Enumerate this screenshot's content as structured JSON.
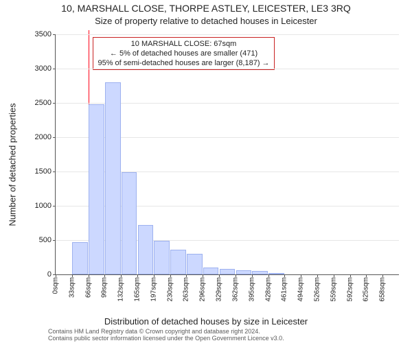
{
  "title": "10, MARSHALL CLOSE, THORPE ASTLEY, LEICESTER, LE3 3RQ",
  "subtitle": "Size of property relative to detached houses in Leicester",
  "y_axis_label": "Number of detached properties",
  "x_axis_label": "Distribution of detached houses by size in Leicester",
  "footer_line1": "Contains HM Land Registry data © Crown copyright and database right 2024.",
  "footer_line2": "Contains public sector information licensed under the Open Government Licence v3.0.",
  "y": {
    "min": 0,
    "max": 3500,
    "ticks": [
      0,
      500,
      1000,
      1500,
      2000,
      2500,
      3000,
      3500
    ]
  },
  "x_tick_labels": [
    "0sqm",
    "33sqm",
    "66sqm",
    "99sqm",
    "132sqm",
    "165sqm",
    "197sqm",
    "230sqm",
    "263sqm",
    "296sqm",
    "329sqm",
    "362sqm",
    "395sqm",
    "428sqm",
    "461sqm",
    "494sqm",
    "526sqm",
    "559sqm",
    "592sqm",
    "625sqm",
    "658sqm"
  ],
  "bars": {
    "fill": "#ccd8ff",
    "border": "#9db1ef",
    "values": [
      0,
      470,
      2480,
      2800,
      1490,
      720,
      490,
      360,
      300,
      100,
      80,
      60,
      50,
      25,
      0,
      0,
      0,
      0,
      0,
      0,
      0
    ]
  },
  "marker": {
    "color": "#ff0016",
    "position_sqm": 67,
    "x_range_max_sqm": 691
  },
  "callout": {
    "border": "#c82020",
    "lines": [
      "10 MARSHALL CLOSE: 67sqm",
      "← 5% of detached houses are smaller (471)",
      "95% of semi-detached houses are larger (8,187) →"
    ]
  }
}
